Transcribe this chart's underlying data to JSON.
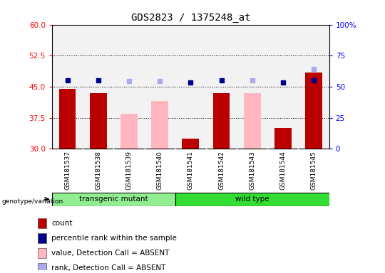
{
  "title": "GDS2823 / 1375248_at",
  "samples": [
    "GSM181537",
    "GSM181538",
    "GSM181539",
    "GSM181540",
    "GSM181541",
    "GSM181542",
    "GSM181543",
    "GSM181544",
    "GSM181545"
  ],
  "count_values": [
    44.5,
    43.5,
    null,
    null,
    32.5,
    43.5,
    null,
    35.0,
    48.5
  ],
  "absent_values": [
    null,
    null,
    38.5,
    41.5,
    null,
    null,
    43.5,
    null,
    null
  ],
  "percentile_rank": [
    55.0,
    55.0,
    null,
    null,
    53.5,
    55.0,
    null,
    53.5,
    55.0
  ],
  "absent_rank": [
    null,
    null,
    54.5,
    54.5,
    null,
    null,
    55.0,
    null,
    64.0
  ],
  "ylim_left": [
    30,
    60
  ],
  "ylim_right": [
    0,
    100
  ],
  "yticks_left": [
    30,
    37.5,
    45,
    52.5,
    60
  ],
  "yticks_right": [
    0,
    25,
    50,
    75,
    100
  ],
  "hlines": [
    37.5,
    45,
    52.5
  ],
  "group_labels": [
    "transgenic mutant",
    "wild type"
  ],
  "group_ranges": [
    [
      0,
      4
    ],
    [
      4,
      9
    ]
  ],
  "group_colors": [
    "#90ee90",
    "#33dd33"
  ],
  "bar_color_present": "#bb0000",
  "bar_color_absent": "#ffb6c1",
  "marker_color_present": "#00008b",
  "marker_color_absent": "#aaaaee",
  "background_plot": "#f2f2f2",
  "bar_width": 0.55,
  "legend_items": [
    {
      "color": "#bb0000",
      "label": "count"
    },
    {
      "color": "#00008b",
      "label": "percentile rank within the sample"
    },
    {
      "color": "#ffb6c1",
      "label": "value, Detection Call = ABSENT"
    },
    {
      "color": "#aaaaee",
      "label": "rank, Detection Call = ABSENT"
    }
  ]
}
